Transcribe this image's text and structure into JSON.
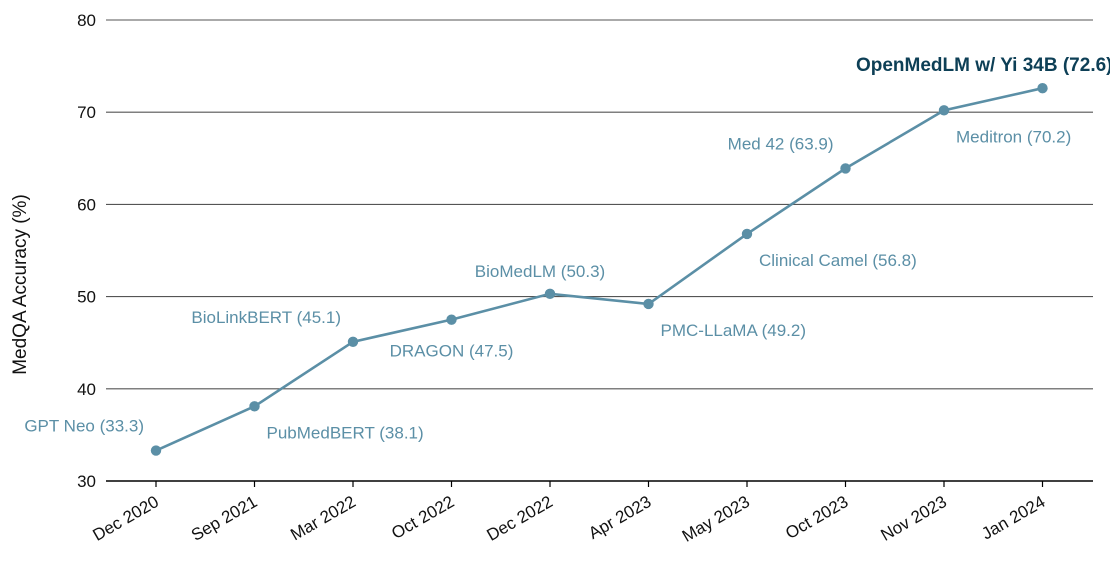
{
  "chart_data": {
    "type": "line",
    "title": "",
    "xlabel": "",
    "ylabel": "MedQA Accuracy (%)",
    "ylim": [
      30,
      80
    ],
    "yticks": [
      30,
      40,
      50,
      60,
      70,
      80
    ],
    "grid": "horizontal",
    "categories": [
      "Dec 2020",
      "Sep 2021",
      "Mar 2022",
      "Oct 2022",
      "Dec 2022",
      "Apr 2023",
      "May 2023",
      "Oct 2023",
      "Nov 2023",
      "Jan 2024"
    ],
    "series": [
      {
        "values": [
          33.3,
          38.1,
          45.1,
          47.5,
          50.3,
          49.2,
          56.8,
          63.9,
          70.2,
          72.6
        ],
        "color": "#5b8fa6"
      }
    ],
    "point_labels": [
      {
        "text": "GPT Neo (33.3)",
        "position": "above-left"
      },
      {
        "text": "PubMedBERT (38.1)",
        "position": "below-right"
      },
      {
        "text": "BioLinkBERT (45.1)",
        "position": "above-left"
      },
      {
        "text": "DRAGON (47.5)",
        "position": "below"
      },
      {
        "text": "BioMedLM (50.3)",
        "position": "above"
      },
      {
        "text": "PMC-LLaMA (49.2)",
        "position": "below-right"
      },
      {
        "text": "Clinical Camel (56.8)",
        "position": "below-right"
      },
      {
        "text": "Med 42 (63.9)",
        "position": "above-left"
      },
      {
        "text": "Meditron (70.2)",
        "position": "below-right"
      },
      {
        "text": "OpenMedLM w/ Yi 34B (72.6)",
        "position": "above-left",
        "highlight": true,
        "color": "#0d3f56"
      }
    ]
  }
}
